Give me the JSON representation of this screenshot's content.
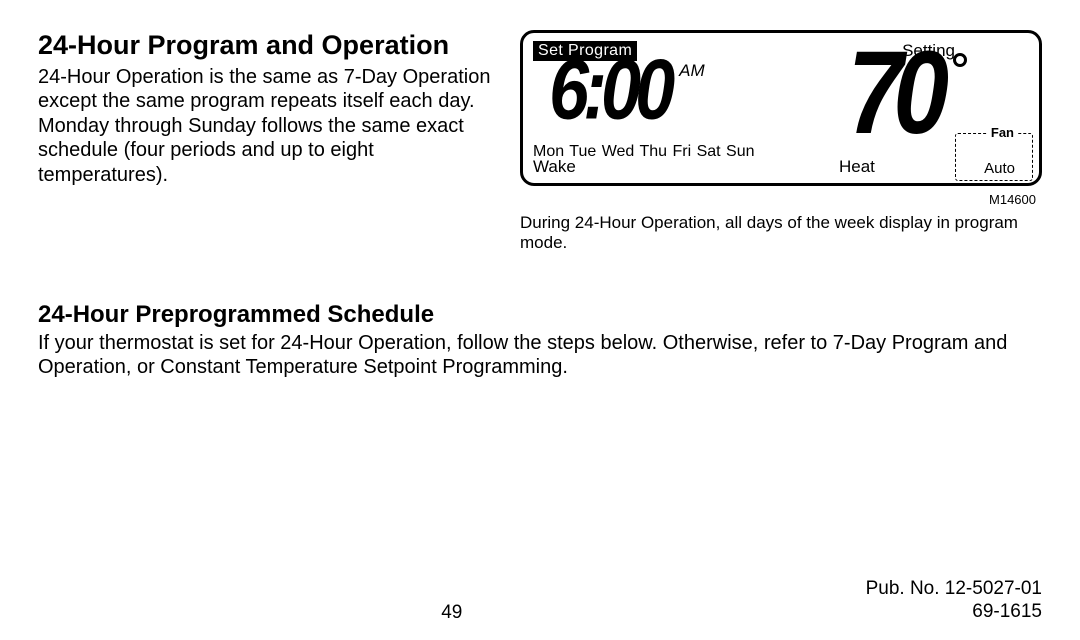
{
  "heading1": "24-Hour Program and Operation",
  "body1": "24-Hour Operation is the same as 7-Day Operation except the same program repeats itself each day. Monday through Sunday follows the same exact schedule (four periods and up to eight temperatures).",
  "lcd": {
    "set_program": "Set Program",
    "setting": "Setting",
    "time": "6:00",
    "ampm": "AM",
    "temp": "70",
    "days": "Mon Tue Wed Thu Fri  Sat Sun",
    "period": "Wake",
    "mode": "Heat",
    "fan_label": "Fan",
    "fan_mode": "Auto",
    "model_no": "M14600",
    "caption": "During 24-Hour Operation, all days of the week display in program mode.",
    "border_color": "#000000",
    "bg_color": "#ffffff"
  },
  "heading2": "24-Hour Preprogrammed Schedule",
  "body2": "If your thermostat is set for 24-Hour Operation, follow the steps below. Otherwise, refer to 7-Day Program and Operation, or Constant Temperature Setpoint Programming.",
  "footer": {
    "page_no": "49",
    "pub_no": "Pub. No. 12-5027-01",
    "doc_no": "69-1615"
  }
}
